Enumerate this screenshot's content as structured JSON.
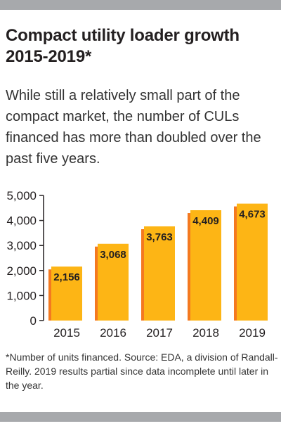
{
  "chart_data": {
    "type": "bar",
    "title": "Compact utility loader growth 2015-2019*",
    "subtitle": "While still a relatively small part of the compact market, the number of CULs financed has more than doubled over the past five years.",
    "categories": [
      "2015",
      "2016",
      "2017",
      "2018",
      "2019"
    ],
    "values": [
      2156,
      3068,
      3763,
      4409,
      4673
    ],
    "data_labels": [
      "2,156",
      "3,068",
      "3,763",
      "4,409",
      "4,673"
    ],
    "yticks": [
      0,
      1000,
      2000,
      3000,
      4000,
      5000
    ],
    "ytick_labels": [
      "0",
      "1,000",
      "2,000",
      "3,000",
      "4,000",
      "5,000"
    ],
    "ylim": [
      0,
      5000
    ],
    "xlabel": "",
    "ylabel": "",
    "grid": false,
    "bar_color": "#fdb515",
    "bar_side_color": "#f47920",
    "footnote": "*Number of units financed. Source: EDA, a division of Randall-Reilly. 2019 results partial since data incomplete until later in the year."
  }
}
